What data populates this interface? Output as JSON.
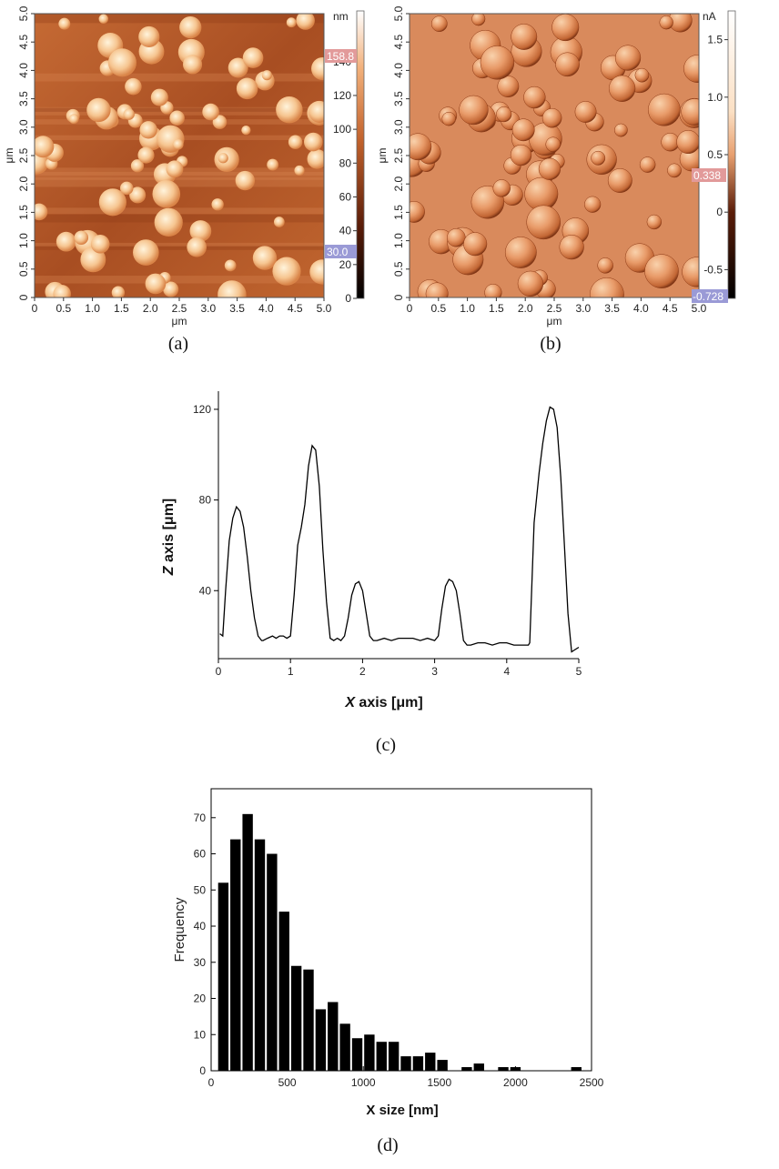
{
  "captions": {
    "a": "(a)",
    "b": "(b)",
    "c": "(c)",
    "d": "(d)"
  },
  "colors": {
    "afm_dark": "#3a1206",
    "afm_mid": "#c2622c",
    "afm_light": "#ffe9c8",
    "current_bg": "#d98a5c",
    "marker_red": "#e29a9a",
    "marker_blue": "#9a9ad6",
    "bar": "#000000"
  },
  "chart_data": [
    {
      "type": "heatmap",
      "id": "a",
      "title": "",
      "xlabel": "μm",
      "ylabel": "μm",
      "xticks": [
        "0",
        "0.5",
        "1.0",
        "1.5",
        "2.0",
        "2.5",
        "3.0",
        "3.5",
        "4.0",
        "4.5",
        "5.0"
      ],
      "yticks": [
        "0",
        "0.5",
        "1.0",
        "1.5",
        "2.0",
        "2.5",
        "3.0",
        "3.5",
        "4.0",
        "4.5",
        "5.0"
      ],
      "xlim": [
        0,
        5
      ],
      "ylim": [
        0,
        5
      ],
      "colorbar": {
        "unit": "nm",
        "ticks": [
          0,
          20,
          40,
          60,
          80,
          100,
          120,
          140
        ],
        "range": [
          0,
          170
        ],
        "marker_high": "158.8",
        "marker_low": "30.0"
      }
    },
    {
      "type": "heatmap",
      "id": "b",
      "title": "",
      "xlabel": "μm",
      "ylabel": "μm",
      "xticks": [
        "0",
        "0.5",
        "1.0",
        "1.5",
        "2.0",
        "2.5",
        "3.0",
        "3.5",
        "4.0",
        "4.5",
        "5.0"
      ],
      "yticks": [
        "0",
        "0.5",
        "1.0",
        "1.5",
        "2.0",
        "2.5",
        "3.0",
        "3.5",
        "4.0",
        "4.5",
        "5.0"
      ],
      "xlim": [
        0,
        5
      ],
      "ylim": [
        0,
        5
      ],
      "colorbar": {
        "unit": "nA",
        "ticks": [
          "1.5",
          "1.0",
          "0.5",
          "0",
          "-0.5"
        ],
        "range": [
          -0.75,
          1.75
        ],
        "marker_high": "0.338",
        "marker_low": "-0.728"
      }
    },
    {
      "type": "line",
      "id": "c",
      "title": "",
      "xlabel_prefix": "X",
      "xlabel_rest": " axis [μm]",
      "ylabel_prefix": "Z",
      "ylabel_rest": " axis [μm]",
      "xlim": [
        0,
        5
      ],
      "ylim": [
        10,
        128
      ],
      "xticks": [
        0,
        1,
        2,
        3,
        4,
        5
      ],
      "yticks": [
        40,
        80,
        120
      ],
      "x": [
        0.02,
        0.06,
        0.1,
        0.15,
        0.2,
        0.25,
        0.3,
        0.35,
        0.4,
        0.45,
        0.5,
        0.55,
        0.6,
        0.62,
        0.68,
        0.75,
        0.8,
        0.85,
        0.9,
        0.95,
        1.0,
        1.05,
        1.1,
        1.15,
        1.2,
        1.25,
        1.3,
        1.35,
        1.4,
        1.45,
        1.5,
        1.55,
        1.6,
        1.65,
        1.7,
        1.75,
        1.8,
        1.85,
        1.9,
        1.95,
        2.0,
        2.05,
        2.1,
        2.15,
        2.2,
        2.3,
        2.4,
        2.5,
        2.6,
        2.7,
        2.8,
        2.9,
        3.0,
        3.05,
        3.1,
        3.15,
        3.2,
        3.25,
        3.3,
        3.35,
        3.4,
        3.45,
        3.5,
        3.6,
        3.7,
        3.8,
        3.9,
        4.0,
        4.1,
        4.2,
        4.3,
        4.32,
        4.38,
        4.45,
        4.5,
        4.55,
        4.6,
        4.65,
        4.7,
        4.75,
        4.8,
        4.85,
        4.9,
        4.95,
        5.0
      ],
      "y": [
        21,
        20,
        40,
        62,
        72,
        77,
        75,
        68,
        55,
        40,
        28,
        20,
        18,
        18,
        19,
        20,
        19,
        20,
        20,
        19,
        20,
        38,
        60,
        68,
        78,
        95,
        104,
        102,
        86,
        58,
        35,
        19,
        18,
        19,
        18,
        20,
        28,
        38,
        43,
        44,
        40,
        30,
        20,
        18,
        18,
        19,
        18,
        19,
        19,
        19,
        18,
        19,
        18,
        20,
        32,
        42,
        45,
        44,
        40,
        30,
        18,
        16,
        16,
        17,
        17,
        16,
        17,
        17,
        16,
        16,
        16,
        17,
        70,
        92,
        105,
        115,
        121,
        120,
        112,
        90,
        60,
        30,
        13,
        14,
        15
      ]
    },
    {
      "type": "bar",
      "id": "d",
      "title": "",
      "xlabel": "X size [nm]",
      "ylabel": "Frequency",
      "xlim": [
        0,
        2500
      ],
      "ylim": [
        0,
        78
      ],
      "xticks": [
        0,
        500,
        1000,
        1500,
        2000,
        2500
      ],
      "yticks": [
        0,
        10,
        20,
        30,
        40,
        50,
        60,
        70
      ],
      "bin_width": 80,
      "bin_starts": [
        40,
        120,
        200,
        280,
        360,
        440,
        520,
        600,
        680,
        760,
        840,
        920,
        1000,
        1080,
        1160,
        1240,
        1320,
        1400,
        1480,
        1560,
        1640,
        1720,
        1800,
        1880,
        1960,
        2040,
        2120,
        2200,
        2280,
        2360
      ],
      "values": [
        52,
        64,
        71,
        64,
        60,
        44,
        29,
        28,
        17,
        19,
        13,
        9,
        10,
        8,
        8,
        4,
        4,
        5,
        3,
        0,
        1,
        2,
        0,
        1,
        1,
        0,
        0,
        0,
        0,
        1
      ]
    }
  ]
}
